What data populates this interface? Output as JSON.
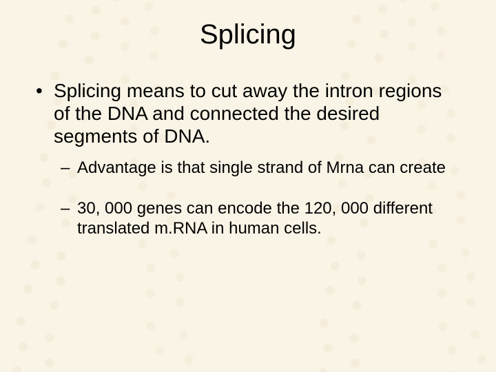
{
  "slide": {
    "background_color": "#faf4e6",
    "watermark_color": "#e9e1c9",
    "text_color": "#000000",
    "title": "Splicing",
    "title_fontsize": 40,
    "body_fontsize_l1": 28,
    "body_fontsize_l2": 24,
    "bullets": [
      {
        "level": 1,
        "marker": "•",
        "text": "Splicing means to cut away the intron regions of the DNA and connected the desired segments of DNA."
      },
      {
        "level": 2,
        "marker": "–",
        "text": "Advantage is that single strand of Mrna can create"
      },
      {
        "level": 2,
        "marker": "–",
        "text": "30, 000 genes can encode the 120, 000 different translated m.RNA in human cells."
      }
    ]
  }
}
